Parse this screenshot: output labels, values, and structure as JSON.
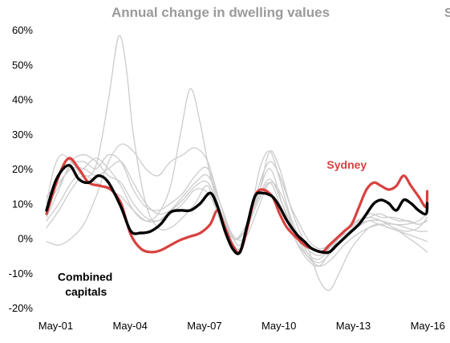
{
  "chart_data": {
    "type": "line",
    "title": "Annual change in dwelling values",
    "corner_glyph": "S",
    "xlabel": "",
    "ylabel": "",
    "ylim": [
      -0.2,
      0.6
    ],
    "xlim": [
      2001.0,
      2016.75
    ],
    "y_ticks": [
      "-20%",
      "-10%",
      "0%",
      "10%",
      "20%",
      "30%",
      "40%",
      "50%",
      "60%"
    ],
    "x_ticks": [
      {
        "label": "May-01",
        "x": 2001.37
      },
      {
        "label": "May-04",
        "x": 2004.37
      },
      {
        "label": "May-07",
        "x": 2007.37
      },
      {
        "label": "May-10",
        "x": 2010.37
      },
      {
        "label": "May-13",
        "x": 2013.37
      },
      {
        "label": "May-16",
        "x": 2016.37
      }
    ],
    "grid": false,
    "colors": {
      "sydney": "#d9413f",
      "combined": "#000000",
      "other": "#cccccc",
      "title": "#9a9a9a"
    },
    "annotations": [
      {
        "text": "Sydney",
        "x": 2012.3,
        "y": 0.2,
        "color": "#d9413f"
      },
      {
        "text": "Combined",
        "x": 2001.45,
        "y": -0.122,
        "color": "#000000"
      },
      {
        "text": "capitals",
        "x": 2001.75,
        "y": -0.165,
        "color": "#000000"
      }
    ],
    "series": [
      {
        "name": "Sydney",
        "highlight": "sydney",
        "x": [
          2001.0,
          2001.5,
          2001.9,
          2002.3,
          2002.7,
          2003.2,
          2003.6,
          2004.0,
          2004.4,
          2004.8,
          2005.2,
          2005.6,
          2006.0,
          2006.4,
          2006.8,
          2007.2,
          2007.6,
          2007.9,
          2008.2,
          2008.5,
          2008.8,
          2009.1,
          2009.4,
          2009.7,
          2010.1,
          2010.4,
          2010.7,
          2011.1,
          2011.4,
          2011.7,
          2012.1,
          2012.4,
          2012.7,
          2013.0,
          2013.3,
          2013.6,
          2013.9,
          2014.2,
          2014.5,
          2014.8,
          2015.1,
          2015.4,
          2015.7,
          2016.0,
          2016.3,
          2016.35
        ],
        "values": [
          0.07,
          0.18,
          0.23,
          0.2,
          0.16,
          0.15,
          0.14,
          0.1,
          0.01,
          -0.03,
          -0.04,
          -0.035,
          -0.02,
          -0.005,
          0.005,
          0.015,
          0.04,
          0.08,
          0.03,
          -0.02,
          -0.04,
          0.03,
          0.12,
          0.14,
          0.12,
          0.07,
          0.03,
          0.0,
          -0.02,
          -0.03,
          -0.04,
          -0.02,
          0.0,
          0.02,
          0.04,
          0.09,
          0.14,
          0.16,
          0.15,
          0.14,
          0.15,
          0.18,
          0.15,
          0.12,
          0.09,
          0.135
        ]
      },
      {
        "name": "Combined capitals",
        "highlight": "combined",
        "x": [
          2001.0,
          2001.4,
          2001.9,
          2002.3,
          2002.7,
          2003.1,
          2003.5,
          2004.0,
          2004.4,
          2004.8,
          2005.2,
          2005.6,
          2006.0,
          2006.4,
          2006.8,
          2007.2,
          2007.6,
          2007.9,
          2008.2,
          2008.5,
          2008.8,
          2009.1,
          2009.4,
          2009.7,
          2010.1,
          2010.4,
          2010.7,
          2011.1,
          2011.4,
          2011.7,
          2012.1,
          2012.4,
          2012.7,
          2013.0,
          2013.3,
          2013.6,
          2013.9,
          2014.2,
          2014.5,
          2014.8,
          2015.1,
          2015.4,
          2015.7,
          2016.0,
          2016.3,
          2016.35
        ],
        "values": [
          0.08,
          0.17,
          0.21,
          0.17,
          0.16,
          0.18,
          0.16,
          0.09,
          0.02,
          0.015,
          0.02,
          0.04,
          0.075,
          0.08,
          0.08,
          0.1,
          0.13,
          0.09,
          0.02,
          -0.03,
          -0.04,
          0.04,
          0.12,
          0.13,
          0.12,
          0.09,
          0.05,
          0.01,
          -0.01,
          -0.03,
          -0.04,
          -0.04,
          -0.02,
          0.0,
          0.02,
          0.04,
          0.07,
          0.1,
          0.11,
          0.1,
          0.08,
          0.11,
          0.1,
          0.08,
          0.07,
          0.1
        ]
      },
      {
        "x": [
          2001.0,
          2001.3,
          2001.6,
          2002.0,
          2002.5,
          2003.0,
          2003.5,
          2003.9,
          2004.2,
          2004.5,
          2005.0,
          2005.5,
          2006.0,
          2006.5,
          2007.0,
          2007.5,
          2008.0,
          2008.5,
          2008.8,
          2009.2,
          2009.6,
          2010.0,
          2010.4,
          2010.8,
          2011.2,
          2011.6,
          2012.0,
          2012.4,
          2012.8,
          2013.2,
          2013.6,
          2014.0,
          2014.4,
          2014.8,
          2015.2,
          2015.6,
          2016.0,
          2016.35
        ],
        "values": [
          0.1,
          0.2,
          0.24,
          0.22,
          0.18,
          0.21,
          0.4,
          0.58,
          0.5,
          0.3,
          0.1,
          0.03,
          0.03,
          0.06,
          0.1,
          0.15,
          0.05,
          -0.02,
          -0.03,
          0.06,
          0.2,
          0.25,
          0.17,
          0.07,
          0.0,
          -0.05,
          -0.06,
          -0.03,
          0.0,
          0.02,
          0.04,
          0.05,
          0.04,
          0.03,
          0.02,
          0.0,
          -0.02,
          -0.04
        ]
      },
      {
        "x": [
          2001.0,
          2001.5,
          2002.0,
          2002.5,
          2003.0,
          2003.5,
          2004.0,
          2004.5,
          2005.0,
          2005.5,
          2006.0,
          2006.4,
          2006.8,
          2007.2,
          2007.6,
          2008.0,
          2008.4,
          2008.8,
          2009.2,
          2009.6,
          2010.0,
          2010.4,
          2010.8,
          2011.2,
          2011.6,
          2012.0,
          2012.4,
          2012.8,
          2013.2,
          2013.6,
          2014.0,
          2014.4,
          2014.8,
          2015.2,
          2015.6,
          2016.0,
          2016.35
        ],
        "values": [
          0.05,
          0.1,
          0.16,
          0.2,
          0.23,
          0.2,
          0.15,
          0.08,
          0.05,
          0.07,
          0.15,
          0.3,
          0.43,
          0.33,
          0.18,
          0.08,
          0.0,
          -0.03,
          0.05,
          0.16,
          0.22,
          0.18,
          0.1,
          0.04,
          -0.01,
          -0.03,
          -0.02,
          0.0,
          0.03,
          0.05,
          0.06,
          0.07,
          0.06,
          0.05,
          0.05,
          0.04,
          0.05
        ]
      },
      {
        "x": [
          2001.0,
          2001.5,
          2002.0,
          2002.5,
          2003.0,
          2003.5,
          2004.0,
          2004.5,
          2005.0,
          2005.5,
          2006.0,
          2006.5,
          2007.0,
          2007.5,
          2008.0,
          2008.4,
          2008.8,
          2009.2,
          2009.6,
          2010.0,
          2010.4,
          2010.8,
          2011.2,
          2011.6,
          2012.0,
          2012.4,
          2012.8,
          2013.2,
          2013.6,
          2014.0,
          2014.4,
          2014.8,
          2015.2,
          2015.6,
          2016.0,
          2016.35
        ],
        "values": [
          -0.01,
          -0.02,
          0.0,
          0.04,
          0.12,
          0.22,
          0.27,
          0.25,
          0.2,
          0.18,
          0.22,
          0.24,
          0.26,
          0.22,
          0.1,
          0.02,
          -0.02,
          0.06,
          0.14,
          0.25,
          0.2,
          0.1,
          0.02,
          -0.04,
          -0.12,
          -0.15,
          -0.1,
          -0.04,
          0.0,
          0.03,
          0.04,
          0.03,
          0.02,
          0.01,
          0.0,
          -0.01
        ]
      },
      {
        "x": [
          2001.0,
          2001.5,
          2002.0,
          2002.5,
          2003.0,
          2003.5,
          2004.0,
          2004.5,
          2005.0,
          2005.5,
          2006.0,
          2006.5,
          2007.0,
          2007.5,
          2008.0,
          2008.5,
          2009.0,
          2009.5,
          2010.0,
          2010.5,
          2011.0,
          2011.5,
          2012.0,
          2012.5,
          2013.0,
          2013.5,
          2014.0,
          2014.5,
          2015.0,
          2015.5,
          2016.0,
          2016.35
        ],
        "values": [
          0.12,
          0.16,
          0.2,
          0.2,
          0.18,
          0.2,
          0.22,
          0.16,
          0.1,
          0.07,
          0.08,
          0.11,
          0.15,
          0.16,
          0.08,
          0.0,
          0.02,
          0.12,
          0.2,
          0.1,
          0.0,
          -0.06,
          -0.08,
          -0.03,
          0.02,
          0.05,
          0.06,
          0.05,
          0.03,
          0.02,
          0.03,
          0.06
        ]
      },
      {
        "x": [
          2001.0,
          2001.5,
          2002.0,
          2002.5,
          2003.0,
          2003.5,
          2004.0,
          2004.5,
          2005.0,
          2005.5,
          2006.0,
          2006.5,
          2007.0,
          2007.5,
          2008.0,
          2008.5,
          2009.0,
          2009.5,
          2010.0,
          2010.5,
          2011.0,
          2011.5,
          2012.0,
          2012.5,
          2013.0,
          2013.5,
          2014.0,
          2014.5,
          2015.0,
          2015.5,
          2016.0,
          2016.35
        ],
        "values": [
          0.09,
          0.15,
          0.21,
          0.22,
          0.2,
          0.24,
          0.22,
          0.14,
          0.09,
          0.08,
          0.1,
          0.13,
          0.18,
          0.2,
          0.1,
          0.0,
          0.03,
          0.11,
          0.17,
          0.1,
          0.02,
          -0.03,
          -0.05,
          -0.02,
          0.02,
          0.04,
          0.07,
          0.06,
          0.06,
          0.05,
          0.04,
          0.05
        ]
      },
      {
        "x": [
          2001.0,
          2001.5,
          2002.0,
          2002.5,
          2003.0,
          2003.5,
          2004.0,
          2004.5,
          2005.0,
          2005.5,
          2006.0,
          2006.5,
          2007.0,
          2007.5,
          2008.0,
          2008.5,
          2009.0,
          2009.5,
          2010.0,
          2010.5,
          2011.0,
          2011.5,
          2012.0,
          2012.5,
          2013.0,
          2013.5,
          2014.0,
          2014.5,
          2015.0,
          2015.5,
          2016.0,
          2016.35
        ],
        "values": [
          0.06,
          0.14,
          0.22,
          0.24,
          0.22,
          0.18,
          0.16,
          0.1,
          0.06,
          0.05,
          0.07,
          0.1,
          0.14,
          0.13,
          0.06,
          0.0,
          0.02,
          0.1,
          0.16,
          0.08,
          0.0,
          -0.05,
          -0.07,
          -0.04,
          0.0,
          0.03,
          0.05,
          0.05,
          0.04,
          0.04,
          0.05,
          0.07
        ]
      },
      {
        "x": [
          2001.0,
          2001.5,
          2002.0,
          2002.5,
          2003.0,
          2003.5,
          2004.0,
          2004.5,
          2005.0,
          2005.5,
          2006.0,
          2006.5,
          2007.0,
          2007.5,
          2008.0,
          2008.5,
          2009.0,
          2009.5,
          2010.0,
          2010.5,
          2011.0,
          2011.5,
          2012.0,
          2012.5,
          2013.0,
          2013.5,
          2014.0,
          2014.5,
          2015.0,
          2015.5,
          2016.0,
          2016.35
        ],
        "values": [
          0.03,
          0.08,
          0.14,
          0.18,
          0.16,
          0.14,
          0.12,
          0.08,
          0.05,
          0.05,
          0.08,
          0.12,
          0.16,
          0.18,
          0.1,
          0.01,
          0.0,
          0.08,
          0.16,
          0.12,
          0.02,
          -0.05,
          -0.08,
          -0.06,
          -0.02,
          0.01,
          0.03,
          0.04,
          0.04,
          0.03,
          0.02,
          0.02
        ]
      }
    ]
  }
}
